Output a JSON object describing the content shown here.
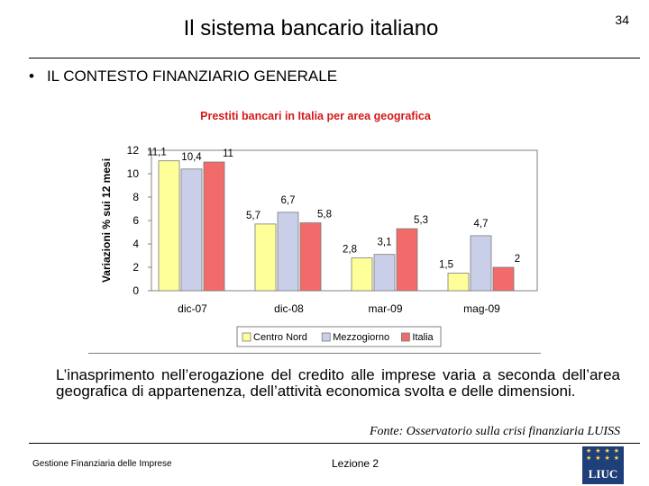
{
  "header": {
    "title": "Il sistema bancario italiano",
    "page_number": "34"
  },
  "section": {
    "bullet": "•",
    "heading": "IL CONTESTO FINANZIARIO GENERALE"
  },
  "chart_data": {
    "type": "bar",
    "title": "Prestiti bancari in Italia per area geografica",
    "ylabel": "Variazioni % sui 12 mesi",
    "xlabel": "",
    "ylim": [
      0,
      12
    ],
    "yticks": [
      "0",
      "2",
      "4",
      "6",
      "8",
      "10",
      "12"
    ],
    "categories": [
      "dic-07",
      "dic-08",
      "mar-09",
      "mag-09"
    ],
    "series": [
      {
        "name": "Centro Nord",
        "values": [
          11.1,
          5.7,
          2.8,
          1.5
        ],
        "labels": [
          "11,1",
          "5,7",
          "2,8",
          "1,5"
        ],
        "color": "#ffff99"
      },
      {
        "name": "Mezzogiorno",
        "values": [
          10.4,
          6.7,
          3.1,
          4.7
        ],
        "labels": [
          "10,4",
          "6,7",
          "3,1",
          "4,7"
        ],
        "color": "#c9cfe8"
      },
      {
        "name": "Italia",
        "values": [
          11,
          5.8,
          5.3,
          2
        ],
        "labels": [
          "11",
          "5,8",
          "5,3",
          "2"
        ],
        "color": "#f26b6b"
      }
    ],
    "legend_position": "bottom",
    "grid": false
  },
  "body": {
    "paragraph": "L’inasprimento nell’erogazione del credito alle imprese varia a seconda dell’area geografica di appartenenza, dell’attività economica svolta e delle dimensioni.",
    "source": "Fonte: Osservatorio sulla crisi finanziaria LUISS"
  },
  "footer": {
    "left": "Gestione Finanziaria delle Imprese",
    "center": "Lezione 2",
    "logo_text": "LIUC"
  }
}
